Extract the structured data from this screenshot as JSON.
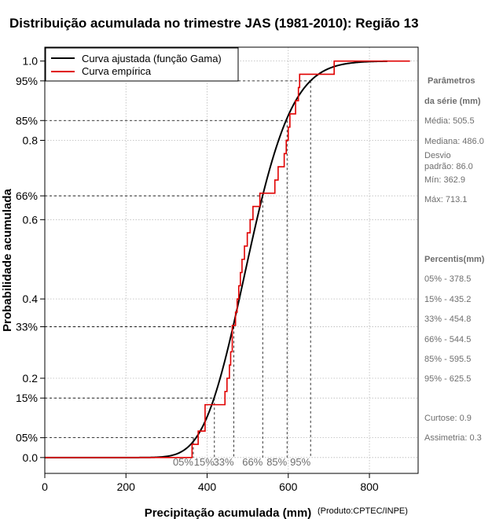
{
  "chart_data": {
    "type": "line",
    "title": "Distribuição acumulada no trimestre JAS (1981-2010): Região 13",
    "xlabel": "Precipitação acumulada (mm)",
    "ylabel": "Probabilidade acumulada",
    "credit": "(Produto:CPTEC/INPE)",
    "xlim": [
      0,
      920
    ],
    "ylim": [
      -0.04,
      1.035
    ],
    "grid": true,
    "legend_position": "top-left",
    "x_ticks": [
      0,
      200,
      400,
      600,
      800
    ],
    "y_ticks": [
      {
        "value": 0.0,
        "label": "0.0"
      },
      {
        "value": 0.05,
        "label": "05%"
      },
      {
        "value": 0.15,
        "label": "15%"
      },
      {
        "value": 0.2,
        "label": "0.2"
      },
      {
        "value": 0.33,
        "label": "33%"
      },
      {
        "value": 0.4,
        "label": "0.4"
      },
      {
        "value": 0.6,
        "label": "0.6"
      },
      {
        "value": 0.66,
        "label": "66%"
      },
      {
        "value": 0.8,
        "label": "0.8"
      },
      {
        "value": 0.85,
        "label": "85%"
      },
      {
        "value": 0.95,
        "label": "95%"
      },
      {
        "value": 1.0,
        "label": "1.0"
      }
    ],
    "series": [
      {
        "name": "Curva ajustada (função Gama)",
        "color": "#000000",
        "kind": "gamma_cdf",
        "mean": 505.5,
        "sd": 86.0,
        "x_range": [
          0,
          845
        ]
      },
      {
        "name": "Curva empírica",
        "color": "#e00000",
        "kind": "step",
        "x": [
          0,
          362.9,
          378,
          395,
          440,
          444,
          449,
          455,
          458,
          462,
          470,
          474,
          478,
          482,
          486,
          492,
          499,
          506,
          513,
          530,
          567,
          575,
          590,
          595,
          600,
          604,
          611,
          618,
          625,
          628,
          713.1,
          900
        ],
        "y": [
          0,
          0.0333,
          0.0667,
          0.1333,
          0.1333,
          0.1667,
          0.2,
          0.2333,
          0.2667,
          0.3333,
          0.3667,
          0.4,
          0.4333,
          0.4667,
          0.5,
          0.5333,
          0.5667,
          0.6,
          0.6333,
          0.6667,
          0.7,
          0.7333,
          0.7667,
          0.8,
          0.8333,
          0.8667,
          0.8667,
          0.9,
          0.9333,
          0.9667,
          1.0,
          1.0
        ]
      }
    ],
    "percentile_markers": [
      {
        "label": "05%",
        "p": 0.05,
        "x": 366
      },
      {
        "label": "15%",
        "p": 0.15,
        "x": 418
      },
      {
        "label": "33%",
        "p": 0.33,
        "x": 466
      },
      {
        "label": "66%",
        "p": 0.66,
        "x": 537
      },
      {
        "label": "85%",
        "p": 0.85,
        "x": 597
      },
      {
        "label": "95%",
        "p": 0.95,
        "x": 655
      }
    ],
    "side_panel": {
      "params_heading_1": "Parâmetros",
      "params_heading_2": "da série (mm)",
      "media": "Média: 505.5",
      "mediana": "Mediana: 486.0",
      "desvio_1": "Desvio",
      "desvio_2": "padrão: 86.0",
      "min": "Mín: 362.9",
      "max": "Máx: 713.1",
      "percentis_heading": "Percentis(mm)",
      "p05": "05% - 378.5",
      "p15": "15% - 435.2",
      "p33": "33% - 454.8",
      "p66": "66% - 544.5",
      "p85": "85% - 595.5",
      "p95": "95% - 625.5",
      "curtose": "Curtose: 0.9",
      "assimetria": "Assimetria: 0.3"
    }
  }
}
